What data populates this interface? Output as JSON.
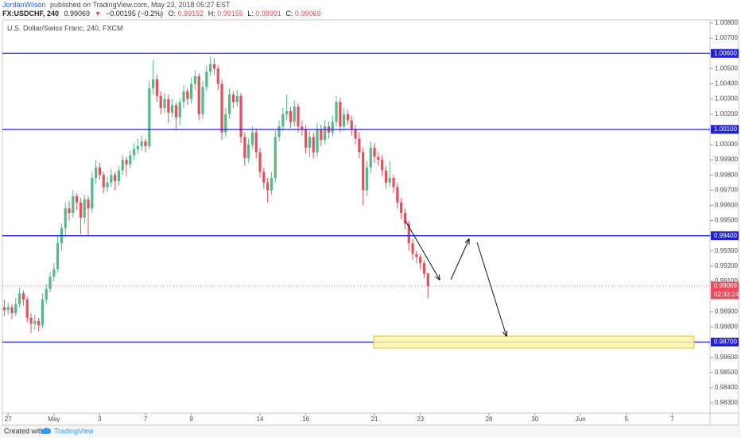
{
  "header": {
    "author": "JordanWilson",
    "published": "published on TradingView.com, May 23, 2018 05:27 EST",
    "symbol": "FX:USDCHF, 240",
    "last": "0.99069",
    "arrow": "▼",
    "change": "−0.00195 (−0.2%)",
    "o_label": "O:",
    "o": "0.99152",
    "h_label": "H:",
    "h": "0.99155",
    "l_label": "L:",
    "l": "0.98991",
    "c_label": "C:",
    "c": "0.99069"
  },
  "footer": {
    "created": "Created with",
    "brand": "TradingView"
  },
  "chart_data": {
    "type": "candlestick",
    "title": "U.S. Dollar/Swiss Franc, 240, FXCM",
    "up_color": "#53b987",
    "down_color": "#eb4d5c",
    "grid": false,
    "xlim": [
      0,
      185.4
    ],
    "ylim": [
      0.98232,
      1.00821
    ],
    "xticks": [
      {
        "value": 1.5,
        "label": "27"
      },
      {
        "value": 13.5,
        "label": "May"
      },
      {
        "value": 25.5,
        "label": "3"
      },
      {
        "value": 37.5,
        "label": "7"
      },
      {
        "value": 49.5,
        "label": "9"
      },
      {
        "value": 67.5,
        "label": "14"
      },
      {
        "value": 79.5,
        "label": "16"
      },
      {
        "value": 97.5,
        "label": "21"
      },
      {
        "value": 109.5,
        "label": "23"
      },
      {
        "value": 127.5,
        "label": "28"
      },
      {
        "value": 139.5,
        "label": "30"
      },
      {
        "value": 151.5,
        "label": "Jun"
      },
      {
        "value": 163.5,
        "label": "5"
      },
      {
        "value": 175.5,
        "label": "7"
      }
    ],
    "yticks": [
      {
        "value": 0.983,
        "label": "0.98300"
      },
      {
        "value": 0.984,
        "label": "0.98400"
      },
      {
        "value": 0.985,
        "label": "0.98500"
      },
      {
        "value": 0.986,
        "label": "0.98600"
      },
      {
        "value": 0.988,
        "label": "0.98800"
      },
      {
        "value": 0.989,
        "label": "0.98900"
      },
      {
        "value": 0.991,
        "label": "0.99100"
      },
      {
        "value": 0.992,
        "label": "0.99200"
      },
      {
        "value": 0.993,
        "label": "0.99300"
      },
      {
        "value": 0.995,
        "label": "0.99500"
      },
      {
        "value": 0.996,
        "label": "0.99600"
      },
      {
        "value": 0.997,
        "label": "0.99700"
      },
      {
        "value": 0.998,
        "label": "0.99800"
      },
      {
        "value": 0.999,
        "label": "0.99900"
      },
      {
        "value": 1.0,
        "label": "1.00000"
      },
      {
        "value": 1.002,
        "label": "1.00200"
      },
      {
        "value": 1.003,
        "label": "1.00300"
      },
      {
        "value": 1.004,
        "label": "1.00400"
      },
      {
        "value": 1.005,
        "label": "1.00500"
      },
      {
        "value": 1.007,
        "label": "1.00700"
      },
      {
        "value": 1.008,
        "label": "1.00800"
      }
    ],
    "levels": [
      {
        "value": 1.006,
        "label": "1.00600"
      },
      {
        "value": 1.001,
        "label": "1.00100"
      },
      {
        "value": 0.994,
        "label": "0.99400"
      },
      {
        "value": 0.987,
        "label": "0.98700"
      }
    ],
    "level_color": "#1e22d4",
    "last_price": {
      "value": 0.99069,
      "label": "0.99069"
    },
    "countdown": "02:32:24",
    "ohlc": [
      [
        0.9893,
        0.9898,
        0.9887,
        0.9891
      ],
      [
        0.9891,
        0.9896,
        0.9888,
        0.9893
      ],
      [
        0.9893,
        0.9895,
        0.9885,
        0.9889
      ],
      [
        0.9889,
        0.9899,
        0.9887,
        0.9895
      ],
      [
        0.9895,
        0.9906,
        0.9893,
        0.9902
      ],
      [
        0.9902,
        0.9904,
        0.9894,
        0.9898
      ],
      [
        0.9898,
        0.99,
        0.9883,
        0.9886
      ],
      [
        0.9886,
        0.9889,
        0.9876,
        0.9882
      ],
      [
        0.9882,
        0.9888,
        0.9878,
        0.9884
      ],
      [
        0.9884,
        0.9886,
        0.9877,
        0.9881
      ],
      [
        0.9881,
        0.9902,
        0.9879,
        0.9898
      ],
      [
        0.9898,
        0.9908,
        0.9895,
        0.9905
      ],
      [
        0.9905,
        0.9916,
        0.9903,
        0.9913
      ],
      [
        0.9913,
        0.9922,
        0.991,
        0.9918
      ],
      [
        0.9918,
        0.994,
        0.9916,
        0.9935
      ],
      [
        0.9935,
        0.9948,
        0.993,
        0.9945
      ],
      [
        0.9945,
        0.9962,
        0.994,
        0.9958
      ],
      [
        0.9958,
        0.9963,
        0.995,
        0.9955
      ],
      [
        0.9955,
        0.997,
        0.9952,
        0.9966
      ],
      [
        0.9966,
        0.9968,
        0.9957,
        0.9962
      ],
      [
        0.9962,
        0.9965,
        0.9941,
        0.9952
      ],
      [
        0.9952,
        0.9967,
        0.9948,
        0.9964
      ],
      [
        0.9964,
        0.9966,
        0.994,
        0.9958
      ],
      [
        0.9958,
        0.9982,
        0.9955,
        0.9978
      ],
      [
        0.9978,
        0.999,
        0.9974,
        0.9985
      ],
      [
        0.9985,
        0.9988,
        0.9977,
        0.998
      ],
      [
        0.998,
        0.9982,
        0.9968,
        0.9972
      ],
      [
        0.9972,
        0.9979,
        0.9969,
        0.9975
      ],
      [
        0.9975,
        0.9984,
        0.9972,
        0.998
      ],
      [
        0.998,
        0.9982,
        0.997,
        0.9976
      ],
      [
        0.9976,
        0.9986,
        0.9973,
        0.9983
      ],
      [
        0.9983,
        0.9993,
        0.998,
        0.999
      ],
      [
        0.999,
        0.9992,
        0.9979,
        0.9987
      ],
      [
        0.9987,
        0.9996,
        0.9984,
        0.9993
      ],
      [
        0.9993,
        1.0001,
        0.999,
        0.9997
      ],
      [
        0.9997,
        1.0004,
        0.9994,
        0.9999
      ],
      [
        0.9999,
        1.0006,
        0.9996,
        1.0002
      ],
      [
        1.0002,
        1.0004,
        0.9995,
        0.9999
      ],
      [
        0.9999,
        1.0042,
        0.9997,
        1.0037
      ],
      [
        1.0037,
        1.0056,
        1.0033,
        1.0043
      ],
      [
        1.0043,
        1.0046,
        1.0028,
        1.0032
      ],
      [
        1.0032,
        1.0035,
        1.002,
        1.0024
      ],
      [
        1.0024,
        1.0034,
        1.0021,
        1.003
      ],
      [
        1.003,
        1.0033,
        1.0014,
        1.0021
      ],
      [
        1.0021,
        1.003,
        1.0018,
        1.0026
      ],
      [
        1.0026,
        1.0028,
        1.001,
        1.0018
      ],
      [
        1.0018,
        1.0031,
        1.0013,
        1.0028
      ],
      [
        1.0028,
        1.0039,
        1.0024,
        1.0035
      ],
      [
        1.0035,
        1.0037,
        1.0026,
        1.003
      ],
      [
        1.003,
        1.0044,
        1.0027,
        1.004
      ],
      [
        1.004,
        1.0049,
        1.0036,
        1.0045
      ],
      [
        1.0045,
        1.0047,
        1.0016,
        1.002
      ],
      [
        1.002,
        1.0042,
        1.0017,
        1.0038
      ],
      [
        1.0038,
        1.0052,
        1.0035,
        1.0048
      ],
      [
        1.0048,
        1.0058,
        1.0045,
        1.0053
      ],
      [
        1.0053,
        1.0057,
        1.0046,
        1.005
      ],
      [
        1.005,
        1.0052,
        1.0036,
        1.004
      ],
      [
        1.004,
        1.0043,
        1.0003,
        1.0008
      ],
      [
        1.0008,
        1.0024,
        1.0005,
        1.002
      ],
      [
        1.002,
        1.0037,
        1.0017,
        1.0033
      ],
      [
        1.0033,
        1.0035,
        1.0024,
        1.0028
      ],
      [
        1.0028,
        1.0036,
        1.0025,
        1.0032
      ],
      [
        1.0032,
        1.0034,
        1.0001,
        1.0005
      ],
      [
        1.0005,
        1.0008,
        0.9986,
        0.9991
      ],
      [
        0.9991,
        1.0004,
        0.9988,
        1.0
      ],
      [
        1.0,
        1.0012,
        0.9997,
        1.0008
      ],
      [
        1.0008,
        1.001,
        0.9991,
        0.9995
      ],
      [
        0.9995,
        0.9998,
        0.9978,
        0.9982
      ],
      [
        0.9982,
        0.9985,
        0.9971,
        0.9975
      ],
      [
        0.9975,
        0.9978,
        0.9962,
        0.997
      ],
      [
        0.997,
        0.9982,
        0.9967,
        0.9978
      ],
      [
        0.9978,
        1.0009,
        0.9975,
        1.0005
      ],
      [
        1.0005,
        1.0016,
        1.0002,
        1.0012
      ],
      [
        1.0012,
        1.0024,
        1.0009,
        1.002
      ],
      [
        1.002,
        1.0033,
        1.0016,
        1.0022
      ],
      [
        1.0022,
        1.0025,
        1.0011,
        1.0015
      ],
      [
        1.0015,
        1.0029,
        1.0012,
        1.0025
      ],
      [
        1.0025,
        1.0027,
        1.0008,
        1.0012
      ],
      [
        1.0012,
        1.0016,
        1.0006,
        1.001
      ],
      [
        1.001,
        1.0013,
        0.9994,
        0.9998
      ],
      [
        0.9998,
        1.0009,
        0.9992,
        1.0005
      ],
      [
        1.0005,
        1.0008,
        0.9991,
        0.9995
      ],
      [
        0.9995,
        1.0014,
        0.9992,
        1.001
      ],
      [
        1.001,
        1.0013,
        0.9999,
        1.0003
      ],
      [
        1.0003,
        1.0016,
        1.0,
        1.0012
      ],
      [
        1.0012,
        1.0015,
        1.0004,
        1.0008
      ],
      [
        1.0008,
        1.0019,
        1.0005,
        1.0015
      ],
      [
        1.0015,
        1.0032,
        1.0012,
        1.0028
      ],
      [
        1.0028,
        1.0031,
        1.0008,
        1.0012
      ],
      [
        1.0012,
        1.0024,
        1.0009,
        1.002
      ],
      [
        1.002,
        1.0023,
        1.0013,
        1.0016
      ],
      [
        1.0016,
        1.0019,
        1.0006,
        1.001
      ],
      [
        1.001,
        1.0013,
        1.0,
        1.0004
      ],
      [
        1.0004,
        1.0008,
        0.9991,
        0.9995
      ],
      [
        0.9995,
        0.9998,
        0.996,
        0.997
      ],
      [
        0.997,
        0.9989,
        0.9966,
        0.9985
      ],
      [
        0.9985,
        1.0002,
        0.9981,
        0.9998
      ],
      [
        0.9998,
        1.0001,
        0.9988,
        0.9992
      ],
      [
        0.9992,
        0.9995,
        0.9986,
        0.999
      ],
      [
        0.999,
        0.9993,
        0.9979,
        0.9983
      ],
      [
        0.9983,
        0.9986,
        0.9971,
        0.9975
      ],
      [
        0.9975,
        0.9989,
        0.9972,
        0.9978
      ],
      [
        0.9978,
        0.998,
        0.9968,
        0.9972
      ],
      [
        0.9972,
        0.9975,
        0.9958,
        0.9962
      ],
      [
        0.9962,
        0.9965,
        0.9951,
        0.9955
      ],
      [
        0.9955,
        0.9958,
        0.9944,
        0.9948
      ],
      [
        0.9948,
        0.995,
        0.993,
        0.9935
      ],
      [
        0.9935,
        0.9938,
        0.9924,
        0.9928
      ],
      [
        0.9928,
        0.993,
        0.9922,
        0.9926
      ],
      [
        0.9926,
        0.9928,
        0.9918,
        0.9922
      ],
      [
        0.9922,
        0.9924,
        0.9912,
        0.9915
      ],
      [
        0.99152,
        0.99155,
        0.98991,
        0.99069
      ]
    ]
  }
}
